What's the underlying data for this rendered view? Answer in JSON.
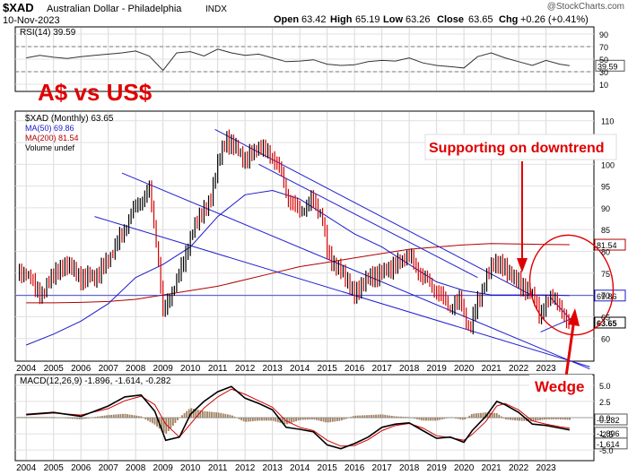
{
  "header": {
    "symbol": "$XAD",
    "name": "Australian Dollar - Philadelphia",
    "exchange": "INDX",
    "date": "10-Nov-2023",
    "open_label": "Open",
    "open": "63.42",
    "high_label": "High",
    "high": "65.19",
    "low_label": "Low",
    "low": "63.26",
    "close_label": "Close",
    "close": "63.65",
    "chg_label": "Chg",
    "chg": "+0.26 (+0.41%)",
    "watermark": "@StockCharts.com"
  },
  "colors": {
    "price_up": "#000000",
    "price_down": "#d40000",
    "ma50": "#1a1ac8",
    "ma200": "#b00000",
    "trendline": "#2020d0",
    "annotation": "#e00000",
    "macd": "#000000",
    "signal": "#d40000",
    "histogram": "#a08060"
  },
  "chart_data": [
    {
      "type": "line",
      "panel": "rsi",
      "legend": "RSI(14) 39.59",
      "ylim": [
        0,
        100
      ],
      "yticks": [
        90,
        70,
        50,
        30,
        10
      ],
      "reference_lines": [
        70,
        30
      ],
      "last_value": "39.59",
      "series": [
        {
          "name": "RSI(14)",
          "x": [
            2004.0,
            2004.5,
            2005.0,
            2005.5,
            2006.0,
            2006.5,
            2007.0,
            2007.5,
            2008.0,
            2008.5,
            2009.0,
            2009.5,
            2010.0,
            2010.5,
            2011.0,
            2011.5,
            2012.0,
            2012.5,
            2013.0,
            2013.5,
            2014.0,
            2014.5,
            2015.0,
            2015.5,
            2016.0,
            2016.5,
            2017.0,
            2017.5,
            2018.0,
            2018.5,
            2019.0,
            2019.5,
            2020.0,
            2020.5,
            2021.0,
            2021.5,
            2022.0,
            2022.5,
            2023.0,
            2023.5,
            2023.86
          ],
          "values": [
            52,
            56,
            53,
            51,
            54,
            56,
            58,
            60,
            63,
            55,
            32,
            60,
            62,
            55,
            66,
            60,
            56,
            58,
            52,
            46,
            47,
            49,
            42,
            40,
            41,
            46,
            48,
            47,
            52,
            44,
            40,
            38,
            36,
            54,
            60,
            52,
            46,
            40,
            48,
            42,
            39.59
          ]
        }
      ]
    },
    {
      "type": "line",
      "panel": "price",
      "title": "$XAD (Monthly) 63.65",
      "legend": [
        {
          "label": "$XAD (Monthly) 63.65",
          "color": "#000000"
        },
        {
          "label": "MA(50) 69.86",
          "color": "#1a1ac8"
        },
        {
          "label": "MA(200) 81.54",
          "color": "#b00000"
        },
        {
          "label": "Volume undef",
          "color": "#000000"
        }
      ],
      "ylim": [
        55,
        112
      ],
      "yticks": [
        110,
        105,
        100,
        95,
        90,
        85,
        80,
        75,
        70,
        65,
        60
      ],
      "value_tags": [
        {
          "label": "81.54",
          "value": 81.54,
          "color": "#b00000"
        },
        {
          "label": "69.86",
          "value": 69.86,
          "color": "#1a1ac8"
        },
        {
          "label": "63.65",
          "value": 63.65,
          "color": "#000000"
        }
      ],
      "series": [
        {
          "name": "$XAD",
          "x": [
            2004.0,
            2004.3,
            2004.6,
            2005.0,
            2005.5,
            2006.0,
            2006.5,
            2007.0,
            2007.5,
            2007.8,
            2008.2,
            2008.5,
            2008.8,
            2009.0,
            2009.5,
            2010.0,
            2010.4,
            2010.7,
            2011.0,
            2011.3,
            2011.6,
            2012.0,
            2012.5,
            2013.0,
            2013.3,
            2013.6,
            2014.0,
            2014.5,
            2014.8,
            2015.0,
            2015.5,
            2015.8,
            2016.0,
            2016.5,
            2017.0,
            2017.5,
            2018.0,
            2018.5,
            2019.0,
            2019.5,
            2019.9,
            2020.2,
            2020.5,
            2020.8,
            2021.1,
            2021.5,
            2021.8,
            2022.0,
            2022.3,
            2022.6,
            2022.8,
            2023.0,
            2023.2,
            2023.5,
            2023.86
          ],
          "values": [
            75,
            72,
            70,
            75,
            77,
            74,
            74,
            78,
            84,
            88,
            92,
            94,
            80,
            66,
            73,
            83,
            89,
            91,
            100,
            106,
            104,
            101,
            104,
            102,
            98,
            92,
            89,
            92,
            88,
            80,
            75,
            73,
            70,
            74,
            75,
            77,
            79,
            74,
            71,
            67,
            69,
            61,
            69,
            73,
            78,
            76,
            74,
            73,
            71,
            69,
            65,
            68,
            70,
            67,
            63.65
          ]
        },
        {
          "name": "MA(50)",
          "x": [
            2004.0,
            2005.0,
            2006.0,
            2007.0,
            2008.0,
            2009.0,
            2010.0,
            2011.0,
            2012.0,
            2013.0,
            2014.0,
            2015.0,
            2016.0,
            2017.0,
            2018.0,
            2019.0,
            2020.0,
            2021.0,
            2022.0,
            2023.0,
            2023.86
          ],
          "values": [
            58.5,
            61,
            64,
            68,
            74,
            77,
            81,
            88,
            93,
            94,
            92,
            88,
            84,
            81,
            77,
            73,
            71,
            70,
            70,
            70,
            69.86
          ]
        },
        {
          "name": "MA(200)",
          "x": [
            2004.0,
            2005.0,
            2006.0,
            2007.0,
            2008.0,
            2009.0,
            2010.0,
            2011.0,
            2012.0,
            2013.0,
            2014.0,
            2015.0,
            2016.0,
            2017.0,
            2018.0,
            2019.0,
            2020.0,
            2021.0,
            2022.0,
            2023.0,
            2023.86
          ],
          "values": [
            68.2,
            68.2,
            68.3,
            68.5,
            69,
            70,
            71,
            72,
            73.5,
            75,
            76.5,
            77.5,
            78.5,
            79.5,
            80.5,
            81,
            81.5,
            81.8,
            81.7,
            81.6,
            81.54
          ]
        }
      ],
      "trendlines": [
        {
          "x": [
            2007.5,
            2024.6
          ],
          "values": [
            98,
            53
          ]
        },
        {
          "x": [
            2006.5,
            2024.6
          ],
          "values": [
            88,
            53.5
          ]
        },
        {
          "x": [
            2010.9,
            2022.5
          ],
          "values": [
            108,
            69.86
          ]
        },
        {
          "x": [
            2012.5,
            2020.5
          ],
          "values": [
            100,
            74
          ]
        },
        {
          "x": [
            2022.8,
            2023.9
          ],
          "values": [
            61.5,
            64.5
          ]
        },
        {
          "x": [
            2023.15,
            2023.95
          ],
          "values": [
            69.5,
            64
          ]
        }
      ],
      "annotations": {
        "title": "A$  vs US$",
        "callout": "Supporting on downtrend",
        "wedge": "Wedge"
      }
    },
    {
      "type": "line",
      "panel": "macd",
      "legend": "MACD(12,26,9) -1.896, -1.614, -0.282",
      "ylim": [
        -6.5,
        6.5
      ],
      "yticks": [
        5.0,
        2.5,
        0.0,
        -2.5,
        -5.0
      ],
      "value_tags": [
        {
          "label": "-0.282",
          "value": -0.282
        },
        {
          "label": "-1.896",
          "value": -1.896
        },
        {
          "label": "-1.614",
          "value": -1.614
        }
      ],
      "series": [
        {
          "name": "MACD",
          "x": [
            2004.0,
            2005.0,
            2006.0,
            2007.0,
            2007.6,
            2008.2,
            2008.7,
            2009.1,
            2009.6,
            2010.0,
            2010.5,
            2011.0,
            2011.5,
            2012.0,
            2012.5,
            2013.0,
            2013.5,
            2014.0,
            2014.5,
            2015.0,
            2015.5,
            2016.0,
            2016.5,
            2017.0,
            2017.5,
            2018.0,
            2018.5,
            2019.0,
            2019.5,
            2020.0,
            2020.3,
            2020.8,
            2021.2,
            2021.5,
            2022.0,
            2022.5,
            2023.0,
            2023.5,
            2023.86
          ],
          "values": [
            0.5,
            0.8,
            0.2,
            1.8,
            3.2,
            3.5,
            1.0,
            -3.5,
            -3.0,
            0.5,
            2.5,
            4.0,
            4.8,
            3.0,
            2.2,
            1.2,
            -1.5,
            -1.8,
            -2.2,
            -4.2,
            -4.8,
            -4.0,
            -3.0,
            -1.5,
            -1.0,
            -0.8,
            -2.0,
            -3.2,
            -3.0,
            -3.8,
            -2.0,
            0.2,
            2.5,
            2.0,
            0.8,
            -1.0,
            -1.2,
            -1.6,
            -1.896
          ]
        },
        {
          "name": "Signal",
          "x": [
            2004.0,
            2005.0,
            2006.0,
            2007.0,
            2007.6,
            2008.2,
            2008.7,
            2009.1,
            2009.6,
            2010.0,
            2010.5,
            2011.0,
            2011.5,
            2012.0,
            2012.5,
            2013.0,
            2013.5,
            2014.0,
            2014.5,
            2015.0,
            2015.5,
            2016.0,
            2016.5,
            2017.0,
            2017.5,
            2018.0,
            2018.5,
            2019.0,
            2019.5,
            2020.0,
            2020.3,
            2020.8,
            2021.2,
            2021.5,
            2022.0,
            2022.5,
            2023.0,
            2023.5,
            2023.86
          ],
          "values": [
            0.4,
            0.7,
            0.4,
            1.4,
            2.6,
            3.3,
            2.0,
            -1.0,
            -3.0,
            -1.0,
            1.5,
            3.2,
            4.4,
            3.6,
            2.6,
            1.6,
            -0.5,
            -1.5,
            -2.0,
            -3.5,
            -4.4,
            -4.3,
            -3.4,
            -2.0,
            -1.2,
            -0.9,
            -1.6,
            -2.8,
            -3.1,
            -3.5,
            -2.6,
            -0.6,
            1.8,
            2.2,
            1.2,
            -0.5,
            -1.0,
            -1.4,
            -1.614
          ]
        }
      ]
    }
  ],
  "x_axis": {
    "range": [
      2003.6,
      2024.75
    ],
    "years": [
      "2004",
      "2005",
      "2006",
      "2007",
      "2008",
      "2009",
      "2010",
      "2011",
      "2012",
      "2013",
      "2014",
      "2015",
      "2016",
      "2017",
      "2018",
      "2019",
      "2020",
      "2021",
      "2022",
      "2023"
    ]
  }
}
